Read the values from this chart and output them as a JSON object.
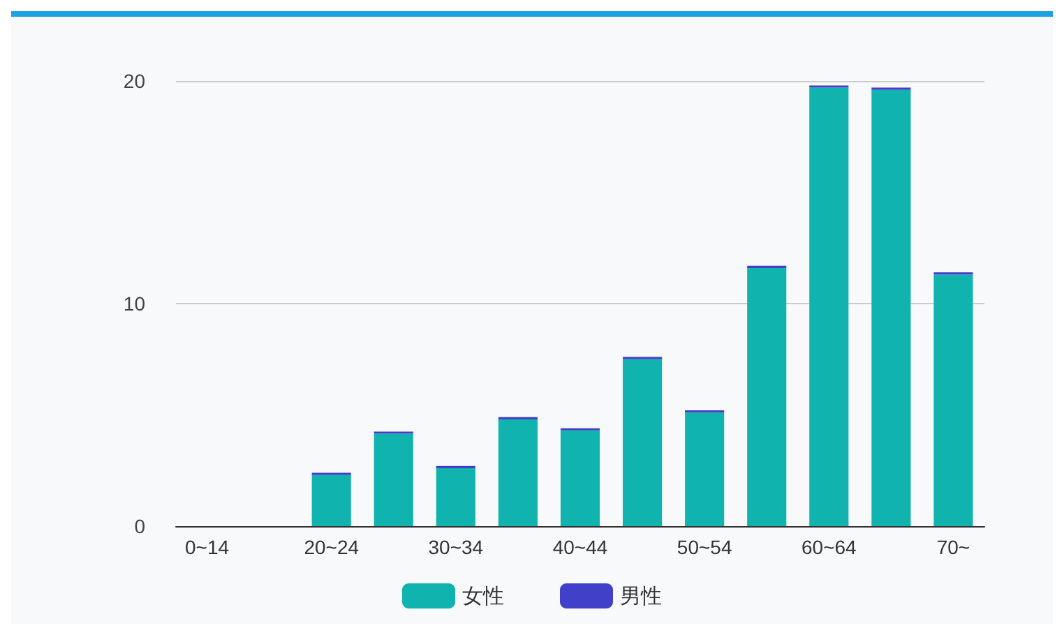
{
  "chart_data": {
    "type": "bar",
    "stacked": true,
    "categories": [
      "0~14",
      null,
      "20~24",
      null,
      "30~34",
      null,
      "40~44",
      null,
      "50~54",
      null,
      "60~64",
      null,
      "70~"
    ],
    "series": [
      {
        "name": "女性",
        "color": "#10b3ae",
        "values": [
          0,
          0,
          2.3,
          4.15,
          2.6,
          4.8,
          4.3,
          7.5,
          5.1,
          11.6,
          19.7,
          19.6,
          11.3
        ]
      },
      {
        "name": "男性",
        "color": "#4040c8",
        "values": [
          0,
          0,
          0.1,
          0.1,
          0.1,
          0.1,
          0.1,
          0.1,
          0.1,
          0.1,
          0.1,
          0.1,
          0.1
        ]
      }
    ],
    "ylim": [
      0,
      20
    ],
    "yticks": [
      0,
      10,
      20
    ],
    "grid": "y",
    "legend": "bottom"
  }
}
